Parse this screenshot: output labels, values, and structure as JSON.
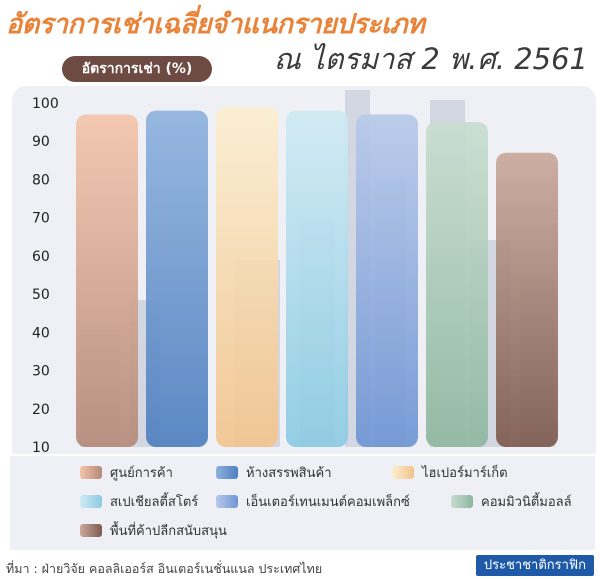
{
  "chart_data": {
    "type": "bar",
    "title": "อัตราการเช่าเฉลี่ยจำแนกรายประเภท",
    "subtitle": "ณ ไตรมาส 2 พ.ศ. 2561",
    "ylabel": "อัตราการเช่า (%)",
    "ylim": [
      10,
      100
    ],
    "yticks": [
      10,
      20,
      30,
      40,
      50,
      60,
      70,
      80,
      90,
      100
    ],
    "grid": false,
    "legend_position": "bottom",
    "categories": [
      "ศูนย์การค้า",
      "ห้างสรรพสินค้า",
      "ไฮเปอร์มาร์เก็ต",
      "สเปเชียลตี้สโตร์",
      "เอ็นเตอร์เทนเมนต์คอมเพล็กซ์",
      "คอมมิวนิตี้มอลล์",
      "พื้นที่ค้าปลีกสนับสนุน"
    ],
    "values": [
      97,
      98,
      99,
      98,
      97,
      95,
      87
    ],
    "colors": [
      [
        "#f3c5ac",
        "#b58a7a"
      ],
      [
        "#8fb2de",
        "#4f7fbf"
      ],
      [
        "#fbeed0",
        "#f2c48e"
      ],
      [
        "#cfeaf4",
        "#8ccbe2"
      ],
      [
        "#b8c9ea",
        "#6f95d4"
      ],
      [
        "#c8ddd0",
        "#8fb79f"
      ],
      [
        "#caa99c",
        "#7d5a4e"
      ]
    ]
  },
  "footer": {
    "source": "ที่มา : ฝ่ายวิจัย คอลลิเออร์ส อินเตอร์เนชั่นแนล ประเทศไทย",
    "brand": "ประชาชาติกราฟิก"
  }
}
